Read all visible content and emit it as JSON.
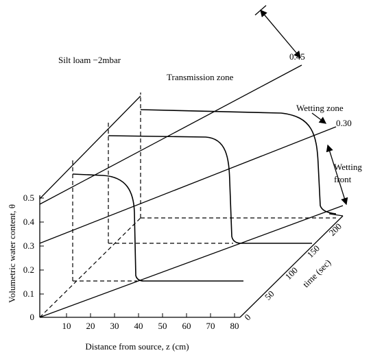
{
  "title": "Silt loam −2mbar",
  "annotations": {
    "transmission": "Transmission zone",
    "top_level": "0.45",
    "wetting_zone": "Wetting zone",
    "mid_level": "0.30",
    "wetting_front_1": "Wetting",
    "wetting_front_2": "front"
  },
  "y_axis": {
    "label": "Volumetric water content, θ",
    "ticks": [
      "0.5",
      "0.4",
      "0.3",
      "0.2",
      "0.1",
      "0"
    ]
  },
  "x_axis": {
    "label": "Distance from source, z (cm)",
    "ticks": [
      "10",
      "20",
      "30",
      "40",
      "50",
      "60",
      "70",
      "80"
    ]
  },
  "t_axis": {
    "label": "time (sec)",
    "ticks": [
      "0",
      "50",
      "100",
      "150",
      "200"
    ]
  }
}
